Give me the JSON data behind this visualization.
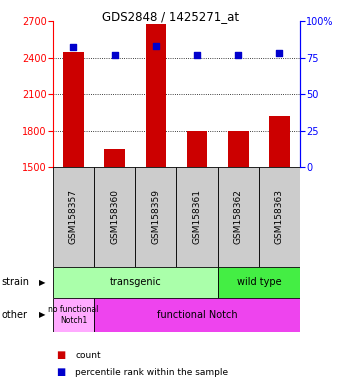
{
  "title": "GDS2848 / 1425271_at",
  "samples": [
    "GSM158357",
    "GSM158360",
    "GSM158359",
    "GSM158361",
    "GSM158362",
    "GSM158363"
  ],
  "counts": [
    2450,
    1650,
    2680,
    1800,
    1795,
    1920
  ],
  "percentiles": [
    82,
    77,
    83,
    77,
    77,
    78
  ],
  "ylim_left": [
    1500,
    2700
  ],
  "ylim_right": [
    0,
    100
  ],
  "yticks_left": [
    1500,
    1800,
    2100,
    2400,
    2700
  ],
  "yticks_right": [
    0,
    25,
    50,
    75,
    100
  ],
  "bar_color": "#cc0000",
  "dot_color": "#0000cc",
  "bar_width": 0.5,
  "bg_color": "#ffffff",
  "strain_transgenic_color": "#aaffaa",
  "strain_wildtype_color": "#44ee44",
  "other_nofunc_color": "#ffaaff",
  "other_func_color": "#ee44ee",
  "label_area_bg": "#cccccc",
  "strain_row_label": "strain",
  "other_row_label": "other",
  "strain_transgenic_label": "transgenic",
  "strain_wildtype_label": "wild type",
  "other_nofunc_label": "no functional\nNotch1",
  "other_func_label": "functional Notch",
  "legend_count_label": "count",
  "legend_pct_label": "percentile rank within the sample"
}
